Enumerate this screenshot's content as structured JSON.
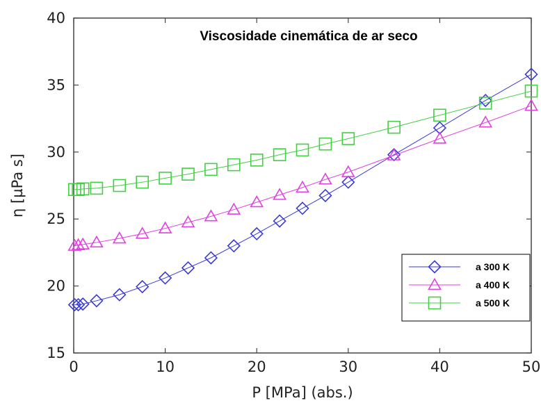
{
  "chart_data": {
    "type": "line",
    "title": "Viscosidade cinemática de ar seco",
    "xlabel": "P [MPa] (abs.)",
    "ylabel": "η [µPa s]",
    "xlim": [
      0,
      50
    ],
    "ylim": [
      15,
      40
    ],
    "xticks": [
      "0",
      "10",
      "20",
      "30",
      "40",
      "50"
    ],
    "yticks": [
      "15",
      "20",
      "25",
      "30",
      "35",
      "40"
    ],
    "grid": false,
    "legend_position": "bottom-right",
    "series": [
      {
        "name": "a 300 K",
        "color": "#3a3ad8",
        "marker": "diamond",
        "x": [
          0.1,
          0.5,
          1,
          2.5,
          5,
          7.5,
          10,
          12.5,
          15,
          17.5,
          20,
          22.5,
          25,
          27.5,
          30,
          35,
          40,
          45,
          50
        ],
        "y": [
          18.6,
          18.6,
          18.65,
          18.9,
          19.35,
          19.95,
          20.6,
          21.35,
          22.1,
          23.0,
          23.9,
          24.85,
          25.8,
          26.75,
          27.75,
          29.8,
          31.8,
          33.85,
          35.8
        ]
      },
      {
        "name": "a 400 K",
        "color": "#e040e0",
        "marker": "triangle",
        "x": [
          0.1,
          0.5,
          1,
          2.5,
          5,
          7.5,
          10,
          12.5,
          15,
          17.5,
          20,
          22.5,
          25,
          27.5,
          30,
          35,
          40,
          45,
          50
        ],
        "y": [
          23.0,
          23.05,
          23.1,
          23.25,
          23.55,
          23.9,
          24.3,
          24.75,
          25.2,
          25.7,
          26.25,
          26.8,
          27.35,
          27.95,
          28.5,
          29.75,
          31.0,
          32.2,
          33.45
        ]
      },
      {
        "name": "a 500 K",
        "color": "#40d040",
        "marker": "square",
        "x": [
          0.1,
          0.5,
          1,
          2.5,
          5,
          7.5,
          10,
          12.5,
          15,
          17.5,
          20,
          22.5,
          25,
          27.5,
          30,
          35,
          40,
          45,
          50
        ],
        "y": [
          27.2,
          27.2,
          27.25,
          27.3,
          27.5,
          27.75,
          28.05,
          28.35,
          28.7,
          29.05,
          29.4,
          29.8,
          30.15,
          30.6,
          31.0,
          31.85,
          32.75,
          33.65,
          34.55
        ]
      }
    ]
  }
}
